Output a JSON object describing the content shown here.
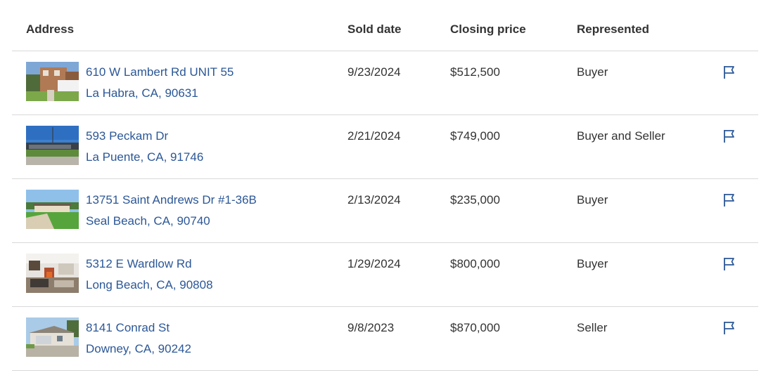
{
  "table": {
    "headers": {
      "address": "Address",
      "sold_date": "Sold date",
      "closing_price": "Closing price",
      "represented": "Represented"
    },
    "rows": [
      {
        "street": "610 W Lambert Rd UNIT 55",
        "city": "La Habra, CA, 90631",
        "sold_date": "9/23/2024",
        "closing_price": "$512,500",
        "represented": "Buyer"
      },
      {
        "street": "593 Peckam Dr",
        "city": "La Puente, CA, 91746",
        "sold_date": "2/21/2024",
        "closing_price": "$749,000",
        "represented": "Buyer and Seller"
      },
      {
        "street": "13751 Saint Andrews Dr #1-36B",
        "city": "Seal Beach, CA, 90740",
        "sold_date": "2/13/2024",
        "closing_price": "$235,000",
        "represented": "Buyer"
      },
      {
        "street": "5312 E Wardlow Rd",
        "city": "Long Beach, CA, 90808",
        "sold_date": "1/29/2024",
        "closing_price": "$800,000",
        "represented": "Buyer"
      },
      {
        "street": "8141 Conrad St",
        "city": "Downey, CA, 90242",
        "sold_date": "9/8/2023",
        "closing_price": "$870,000",
        "represented": "Seller"
      }
    ]
  },
  "icons": {
    "row_action": "flag-icon"
  },
  "colors": {
    "link": "#2b5797",
    "text": "#333333",
    "divider": "#d9d9d9"
  }
}
